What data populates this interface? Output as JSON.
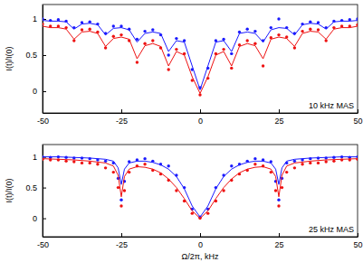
{
  "chart_data": [
    {
      "type": "line",
      "annotation": "10 kHz MAS",
      "y_label": "I(t)/I(0)",
      "xlim": [
        -50,
        50
      ],
      "xticks": [
        -50,
        -25,
        0,
        25,
        50
      ],
      "ylim": [
        -0.3,
        1.2
      ],
      "yticks": [
        0,
        0.5,
        1
      ],
      "series": [
        {
          "type": "scatter",
          "color": "#1a1aff",
          "marker": "circle",
          "x": [
            -50,
            -47.5,
            -45,
            -42.5,
            -40,
            -37.5,
            -35,
            -32.5,
            -30,
            -27.5,
            -25,
            -22.5,
            -20,
            -17.5,
            -15,
            -12.5,
            -10,
            -7.5,
            -5,
            -2.5,
            0,
            2.5,
            5,
            7.5,
            10,
            12.5,
            15,
            17.5,
            20,
            22.5,
            25,
            27.5,
            30,
            32.5,
            35,
            37.5,
            40,
            42.5,
            45,
            47.5,
            50
          ],
          "values": [
            1.0,
            0.98,
            0.99,
            0.97,
            0.88,
            0.95,
            0.96,
            0.93,
            0.8,
            0.9,
            0.9,
            0.86,
            0.72,
            0.83,
            0.85,
            0.78,
            0.5,
            0.73,
            0.7,
            0.3,
            0.05,
            0.32,
            0.7,
            0.72,
            0.52,
            0.82,
            0.86,
            0.83,
            0.7,
            0.88,
            1.0,
            0.88,
            0.8,
            0.93,
            0.96,
            0.95,
            0.88,
            0.97,
            0.98,
            0.99,
            1.0
          ]
        },
        {
          "type": "line",
          "color": "#1a1aff",
          "line_style": "solid",
          "x": [
            -50,
            -47.5,
            -45,
            -42.5,
            -40,
            -37.5,
            -35,
            -32.5,
            -30,
            -27.5,
            -25,
            -22.5,
            -20,
            -17.5,
            -15,
            -12.5,
            -10,
            -7.5,
            -5,
            -2.5,
            0,
            2.5,
            5,
            7.5,
            10,
            12.5,
            15,
            17.5,
            20,
            22.5,
            25,
            27.5,
            30,
            32.5,
            35,
            37.5,
            40,
            42.5,
            45,
            47.5,
            50
          ],
          "values": [
            0.98,
            0.97,
            0.97,
            0.96,
            0.86,
            0.93,
            0.94,
            0.92,
            0.78,
            0.87,
            0.88,
            0.85,
            0.68,
            0.8,
            0.82,
            0.8,
            0.55,
            0.7,
            0.68,
            0.35,
            0.02,
            0.35,
            0.68,
            0.7,
            0.55,
            0.8,
            0.82,
            0.8,
            0.68,
            0.85,
            0.88,
            0.87,
            0.78,
            0.92,
            0.94,
            0.93,
            0.86,
            0.96,
            0.97,
            0.97,
            0.98
          ]
        },
        {
          "type": "scatter",
          "color": "#ee1111",
          "marker": "circle",
          "x": [
            -50,
            -47.5,
            -45,
            -42.5,
            -40,
            -37.5,
            -35,
            -32.5,
            -30,
            -27.5,
            -25,
            -22.5,
            -20,
            -17.5,
            -15,
            -12.5,
            -10,
            -7.5,
            -5,
            -2.5,
            0,
            2.5,
            5,
            7.5,
            10,
            12.5,
            15,
            17.5,
            20,
            22.5,
            25,
            27.5,
            30,
            32.5,
            35,
            37.5,
            40,
            42.5,
            45,
            47.5,
            50
          ],
          "values": [
            0.93,
            0.9,
            0.9,
            0.88,
            0.7,
            0.85,
            0.86,
            0.82,
            0.6,
            0.76,
            0.78,
            0.7,
            0.4,
            0.66,
            0.7,
            0.6,
            0.3,
            0.58,
            0.52,
            0.15,
            -0.05,
            0.18,
            0.52,
            0.58,
            0.32,
            0.64,
            0.7,
            0.66,
            0.35,
            0.74,
            0.78,
            0.75,
            0.6,
            0.83,
            0.86,
            0.85,
            0.7,
            0.88,
            0.9,
            0.9,
            0.92
          ]
        },
        {
          "type": "line",
          "color": "#ee1111",
          "line_style": "solid",
          "x": [
            -50,
            -47.5,
            -45,
            -42.5,
            -40,
            -37.5,
            -35,
            -32.5,
            -30,
            -27.5,
            -25,
            -22.5,
            -20,
            -17.5,
            -15,
            -12.5,
            -10,
            -7.5,
            -5,
            -2.5,
            0,
            2.5,
            5,
            7.5,
            10,
            12.5,
            15,
            17.5,
            20,
            22.5,
            25,
            27.5,
            30,
            32.5,
            35,
            37.5,
            40,
            42.5,
            45,
            47.5,
            50
          ],
          "values": [
            0.9,
            0.88,
            0.88,
            0.86,
            0.72,
            0.82,
            0.83,
            0.8,
            0.62,
            0.73,
            0.75,
            0.72,
            0.45,
            0.63,
            0.66,
            0.62,
            0.35,
            0.55,
            0.5,
            0.2,
            -0.03,
            0.2,
            0.5,
            0.55,
            0.35,
            0.62,
            0.66,
            0.63,
            0.45,
            0.72,
            0.75,
            0.73,
            0.62,
            0.8,
            0.83,
            0.82,
            0.72,
            0.86,
            0.88,
            0.88,
            0.9
          ]
        }
      ]
    },
    {
      "type": "line",
      "annotation": "25 kHz MAS",
      "y_label": "I(t)/I(0)",
      "x_label": "Ω/2π, kHz",
      "xlim": [
        -50,
        50
      ],
      "xticks": [
        -50,
        -25,
        0,
        25,
        50
      ],
      "ylim": [
        -0.3,
        1.2
      ],
      "yticks": [
        0,
        0.5,
        1
      ],
      "series": [
        {
          "type": "scatter",
          "color": "#1a1aff",
          "marker": "circle",
          "x": [
            -50,
            -47.5,
            -45,
            -42.5,
            -40,
            -37.5,
            -35,
            -32.5,
            -30,
            -27.5,
            -26,
            -25,
            -24,
            -22.5,
            -20,
            -17.5,
            -15,
            -12.5,
            -10,
            -7.5,
            -5,
            -2.5,
            0,
            2.5,
            5,
            7.5,
            10,
            12.5,
            15,
            17.5,
            20,
            22.5,
            24,
            25,
            26,
            27.5,
            30,
            32.5,
            35,
            37.5,
            40,
            42.5,
            45,
            47.5,
            50
          ],
          "values": [
            1,
            0.99,
            1,
            0.99,
            0.98,
            0.98,
            0.97,
            0.95,
            0.93,
            0.9,
            0.65,
            0.3,
            0.6,
            0.92,
            0.95,
            0.97,
            0.93,
            0.88,
            0.85,
            0.7,
            0.5,
            0.15,
            0.02,
            0.15,
            0.5,
            0.7,
            0.85,
            0.88,
            0.93,
            0.97,
            0.95,
            0.92,
            0.6,
            0.3,
            0.65,
            0.9,
            0.93,
            0.95,
            0.97,
            0.98,
            0.98,
            0.99,
            1,
            0.99,
            1
          ]
        },
        {
          "type": "line",
          "color": "#1a1aff",
          "line_style": "solid",
          "x": [
            -50,
            -45,
            -40,
            -35,
            -30,
            -27.5,
            -26,
            -25,
            -24,
            -22.5,
            -20,
            -17.5,
            -15,
            -12.5,
            -10,
            -7.5,
            -5,
            -2.5,
            0,
            2.5,
            5,
            7.5,
            10,
            12.5,
            15,
            17.5,
            20,
            22.5,
            24,
            25,
            26,
            27.5,
            30,
            35,
            40,
            45,
            50
          ],
          "values": [
            1,
            1,
            0.99,
            0.98,
            0.96,
            0.93,
            0.82,
            0.55,
            0.8,
            0.9,
            0.93,
            0.93,
            0.91,
            0.87,
            0.8,
            0.68,
            0.48,
            0.2,
            0.02,
            0.2,
            0.48,
            0.68,
            0.8,
            0.87,
            0.91,
            0.93,
            0.93,
            0.9,
            0.8,
            0.55,
            0.82,
            0.93,
            0.96,
            0.98,
            0.99,
            1,
            1
          ]
        },
        {
          "type": "scatter",
          "color": "#ee1111",
          "marker": "circle",
          "x": [
            -50,
            -47.5,
            -45,
            -42.5,
            -40,
            -37.5,
            -35,
            -32.5,
            -30,
            -27.5,
            -26,
            -25,
            -24,
            -22.5,
            -20,
            -17.5,
            -15,
            -12.5,
            -10,
            -7.5,
            -5,
            -2.5,
            0,
            2.5,
            5,
            7.5,
            10,
            12.5,
            15,
            17.5,
            20,
            22.5,
            24,
            25,
            26,
            27.5,
            30,
            32.5,
            35,
            37.5,
            40,
            42.5,
            45,
            47.5,
            50
          ],
          "values": [
            0.96,
            0.95,
            0.95,
            0.93,
            0.92,
            0.9,
            0.9,
            0.88,
            0.82,
            0.75,
            0.5,
            0.2,
            0.45,
            0.75,
            0.85,
            0.88,
            0.78,
            0.72,
            0.62,
            0.45,
            0.28,
            0.08,
            0,
            0.08,
            0.28,
            0.45,
            0.62,
            0.72,
            0.78,
            0.88,
            0.85,
            0.75,
            0.45,
            0.2,
            0.5,
            0.75,
            0.82,
            0.88,
            0.9,
            0.9,
            0.92,
            0.93,
            0.95,
            0.95,
            0.96
          ]
        },
        {
          "type": "line",
          "color": "#ee1111",
          "line_style": "solid",
          "x": [
            -50,
            -45,
            -40,
            -35,
            -30,
            -27.5,
            -26,
            -25,
            -24,
            -22.5,
            -20,
            -17.5,
            -15,
            -12.5,
            -10,
            -7.5,
            -5,
            -2.5,
            0,
            2.5,
            5,
            7.5,
            10,
            12.5,
            15,
            17.5,
            20,
            22.5,
            24,
            25,
            26,
            27.5,
            30,
            35,
            40,
            45,
            50
          ],
          "values": [
            0.97,
            0.96,
            0.95,
            0.93,
            0.9,
            0.85,
            0.7,
            0.35,
            0.68,
            0.8,
            0.84,
            0.83,
            0.8,
            0.74,
            0.64,
            0.5,
            0.32,
            0.12,
            0,
            0.12,
            0.32,
            0.5,
            0.64,
            0.74,
            0.8,
            0.83,
            0.84,
            0.8,
            0.68,
            0.35,
            0.7,
            0.85,
            0.9,
            0.93,
            0.95,
            0.96,
            0.97
          ]
        }
      ]
    }
  ]
}
